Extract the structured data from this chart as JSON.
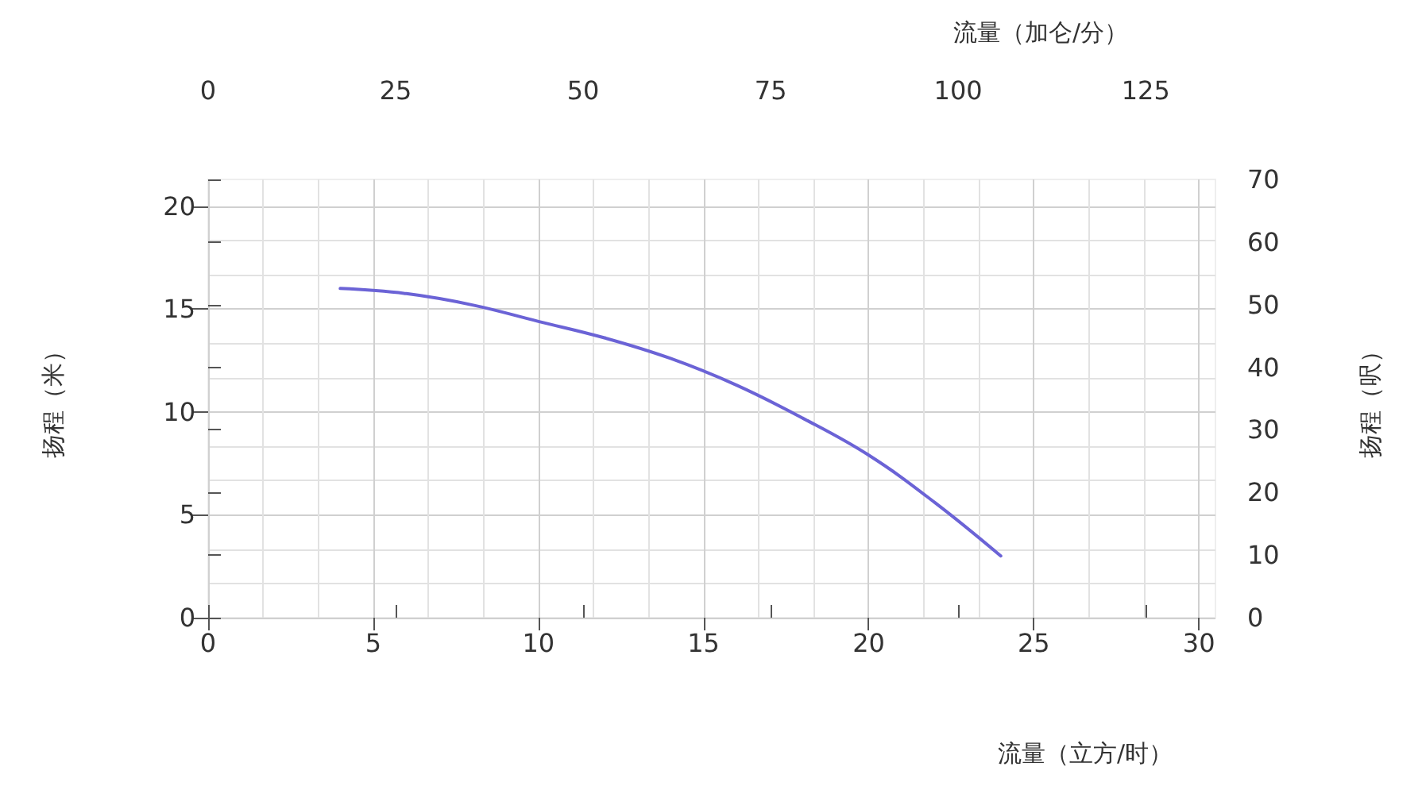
{
  "chart_data": {
    "type": "line",
    "xlabel": "流量（立方/时）",
    "x2label": "流量（加仑/分）",
    "ylabel": "扬程（米）",
    "y2label": "扬程（呎）",
    "x": [
      4,
      6,
      8,
      10,
      12,
      14,
      16,
      18,
      20,
      22,
      24
    ],
    "series": [
      {
        "color": "#6b63d6",
        "values": [
          16,
          15.75,
          15.2,
          14.4,
          13.6,
          12.6,
          11.3,
          9.7,
          7.9,
          5.6,
          3
        ]
      }
    ],
    "xlim": [
      0,
      30.5
    ],
    "xticks": [
      0,
      5,
      10,
      15,
      20,
      25,
      30
    ],
    "x2lim": [
      0,
      134.3
    ],
    "x2ticks": [
      0,
      25,
      50,
      75,
      100,
      125
    ],
    "ylim": [
      0,
      21.3
    ],
    "yticks": [
      0,
      5,
      10,
      15,
      20
    ],
    "y2lim": [
      0,
      70
    ],
    "y2ticks": [
      0,
      10,
      20,
      30,
      40,
      50,
      60,
      70
    ],
    "grid": true,
    "marker": "none",
    "line_style": "solid"
  }
}
